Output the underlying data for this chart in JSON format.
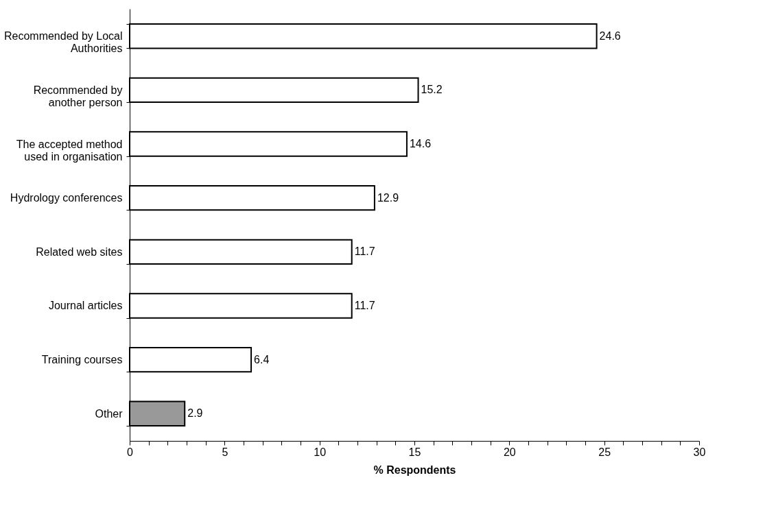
{
  "chart_data": {
    "type": "bar",
    "orientation": "horizontal",
    "xlabel": "% Respondents",
    "categories": [
      "Recommended by Local\nAuthorities",
      "Recommended by\nanother person",
      "The accepted method\nused in organisation",
      "Hydrology conferences",
      "Related web sites",
      "Journal articles",
      "Training courses",
      "Other"
    ],
    "values": [
      24.6,
      15.2,
      14.6,
      12.9,
      11.7,
      11.7,
      6.4,
      2.9
    ],
    "colors": [
      "#ffffff",
      "#ffffff",
      "#ffffff",
      "#ffffff",
      "#ffffff",
      "#ffffff",
      "#ffffff",
      "#999999"
    ],
    "xlim": [
      0,
      30
    ],
    "xticks": [
      0,
      {
        "value": 1,
        "label": null
      },
      {
        "value": 2,
        "label": null
      },
      {
        "value": 3,
        "label": null
      },
      {
        "value": 4,
        "label": null
      },
      5,
      {
        "value": 6,
        "label": null
      },
      {
        "value": 7,
        "label": null
      },
      {
        "value": 8,
        "label": null
      },
      {
        "value": 9,
        "label": null
      },
      10,
      {
        "value": 11,
        "label": null
      },
      {
        "value": 12,
        "label": null
      },
      {
        "value": 13,
        "label": null
      },
      {
        "value": 14,
        "label": null
      },
      15,
      {
        "value": 16,
        "label": null
      },
      {
        "value": 17,
        "label": null
      },
      {
        "value": 18,
        "label": null
      },
      {
        "value": 19,
        "label": null
      },
      20,
      {
        "value": 21,
        "label": null
      },
      {
        "value": 22,
        "label": null
      },
      {
        "value": 23,
        "label": null
      },
      {
        "value": 24,
        "label": null
      },
      25,
      {
        "value": 26,
        "label": null
      },
      {
        "value": 27,
        "label": null
      },
      {
        "value": 28,
        "label": null
      },
      {
        "value": 29,
        "label": null
      },
      30
    ],
    "data_labels": true,
    "grid": false
  }
}
